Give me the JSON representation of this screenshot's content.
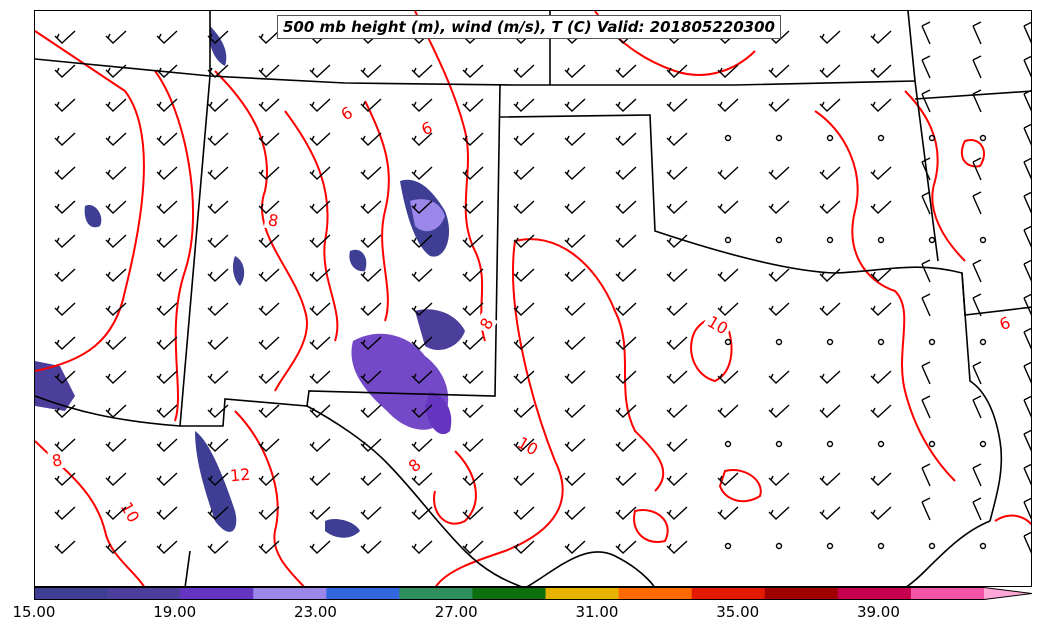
{
  "title": "500 mb height (m), wind (m/s), T (C) Valid: 201805220300",
  "colorbar": {
    "colors": [
      "#3e3f94",
      "#4c3f9c",
      "#6535c2",
      "#9b86e9",
      "#3367df",
      "#2f8f5c",
      "#0e6f0f",
      "#e6b400",
      "#ff6a00",
      "#e21b00",
      "#a10000",
      "#c4004f",
      "#f255a8",
      "#ffa7d8"
    ],
    "tick_labels": [
      "15.00",
      "19.00",
      "23.00",
      "27.00",
      "31.00",
      "35.00",
      "39.00"
    ],
    "tick_values": [
      15,
      19,
      23,
      27,
      31,
      35,
      39
    ],
    "min": 15,
    "max": 42
  },
  "contour_labels": [
    "6",
    "6",
    "8",
    "8",
    "8",
    "10",
    "10",
    "10",
    "12",
    "8",
    "6"
  ],
  "map_colors": {
    "temperature_contour": "#ff0000",
    "state_borders": "#000000",
    "wind_barbs": "#000000"
  }
}
